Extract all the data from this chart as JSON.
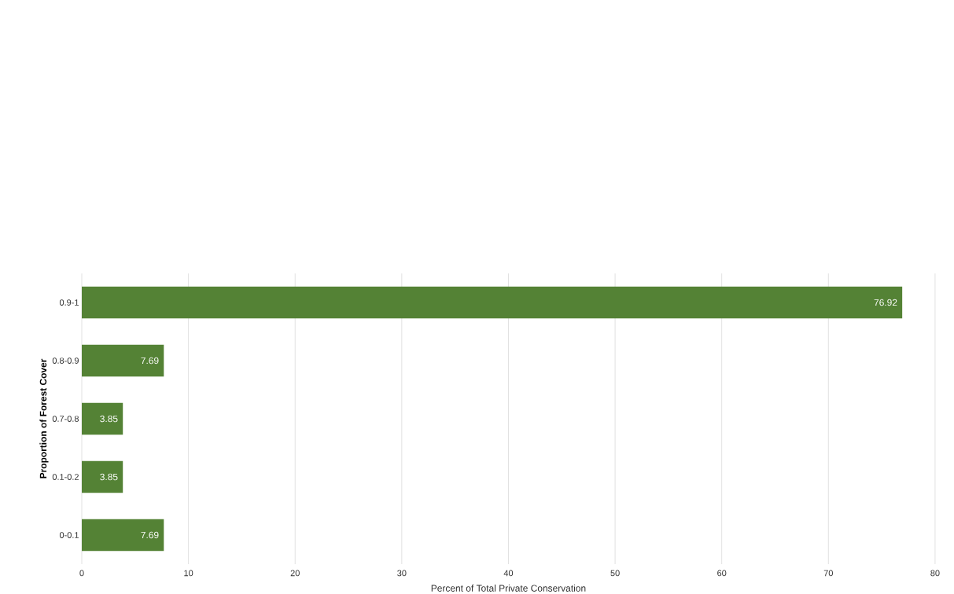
{
  "chart_data": {
    "type": "bar",
    "orientation": "horizontal",
    "xlabel": "Percent of Total Private Conservation",
    "ylabel": "Proportion of Forest Cover",
    "categories": [
      "0.9-1",
      "0.8-0.9",
      "0.7-0.8",
      "0.1-0.2",
      "0-0.1"
    ],
    "values": [
      76.92,
      7.69,
      3.85,
      3.85,
      7.69
    ],
    "color": "#548235",
    "xlim": [
      0,
      80
    ],
    "xticks": [
      0,
      10,
      20,
      30,
      40,
      50,
      60,
      70,
      80
    ],
    "grid": "x",
    "data_labels": true
  }
}
